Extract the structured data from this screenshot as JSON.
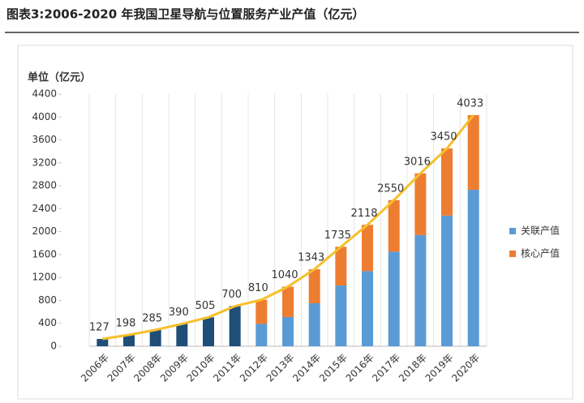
{
  "chart_data": {
    "type": "stacked_bar_line",
    "title": "图表3:2006-2020 年我国卫星导航与位置服务产业产值（亿元）",
    "y_label": "单位（亿元）",
    "categories": [
      "2006年",
      "2007年",
      "2008年",
      "2009年",
      "2010年",
      "2011年",
      "2012年",
      "2013年",
      "2014年",
      "2015年",
      "2016年",
      "2017年",
      "2018年",
      "2019年",
      "2020年"
    ],
    "series": [
      {
        "color": "#1f4e79",
        "values": [
          127,
          198,
          285,
          390,
          505,
          700,
          null,
          null,
          null,
          null,
          null,
          null,
          null,
          null,
          null
        ]
      },
      {
        "name": "关联产值",
        "color": "#5b9bd5",
        "values": [
          null,
          null,
          null,
          null,
          null,
          null,
          390,
          510,
          750,
          1060,
          1310,
          1650,
          1940,
          2280,
          2730
        ]
      },
      {
        "name": "核心产值",
        "color": "#ed7d31",
        "values": [
          null,
          null,
          null,
          null,
          null,
          null,
          420,
          530,
          593,
          675,
          808,
          900,
          1076,
          1170,
          1303
        ]
      }
    ],
    "line": {
      "color": "#f5c02c",
      "values": [
        127,
        198,
        285,
        390,
        505,
        700,
        810,
        1040,
        1343,
        1735,
        2118,
        2550,
        3016,
        3450,
        4033
      ]
    },
    "ylim": [
      0,
      4400
    ],
    "yticks": [
      0,
      400,
      800,
      1200,
      1600,
      2000,
      2400,
      2800,
      3200,
      3600,
      4000,
      4400
    ],
    "legend": "right"
  }
}
